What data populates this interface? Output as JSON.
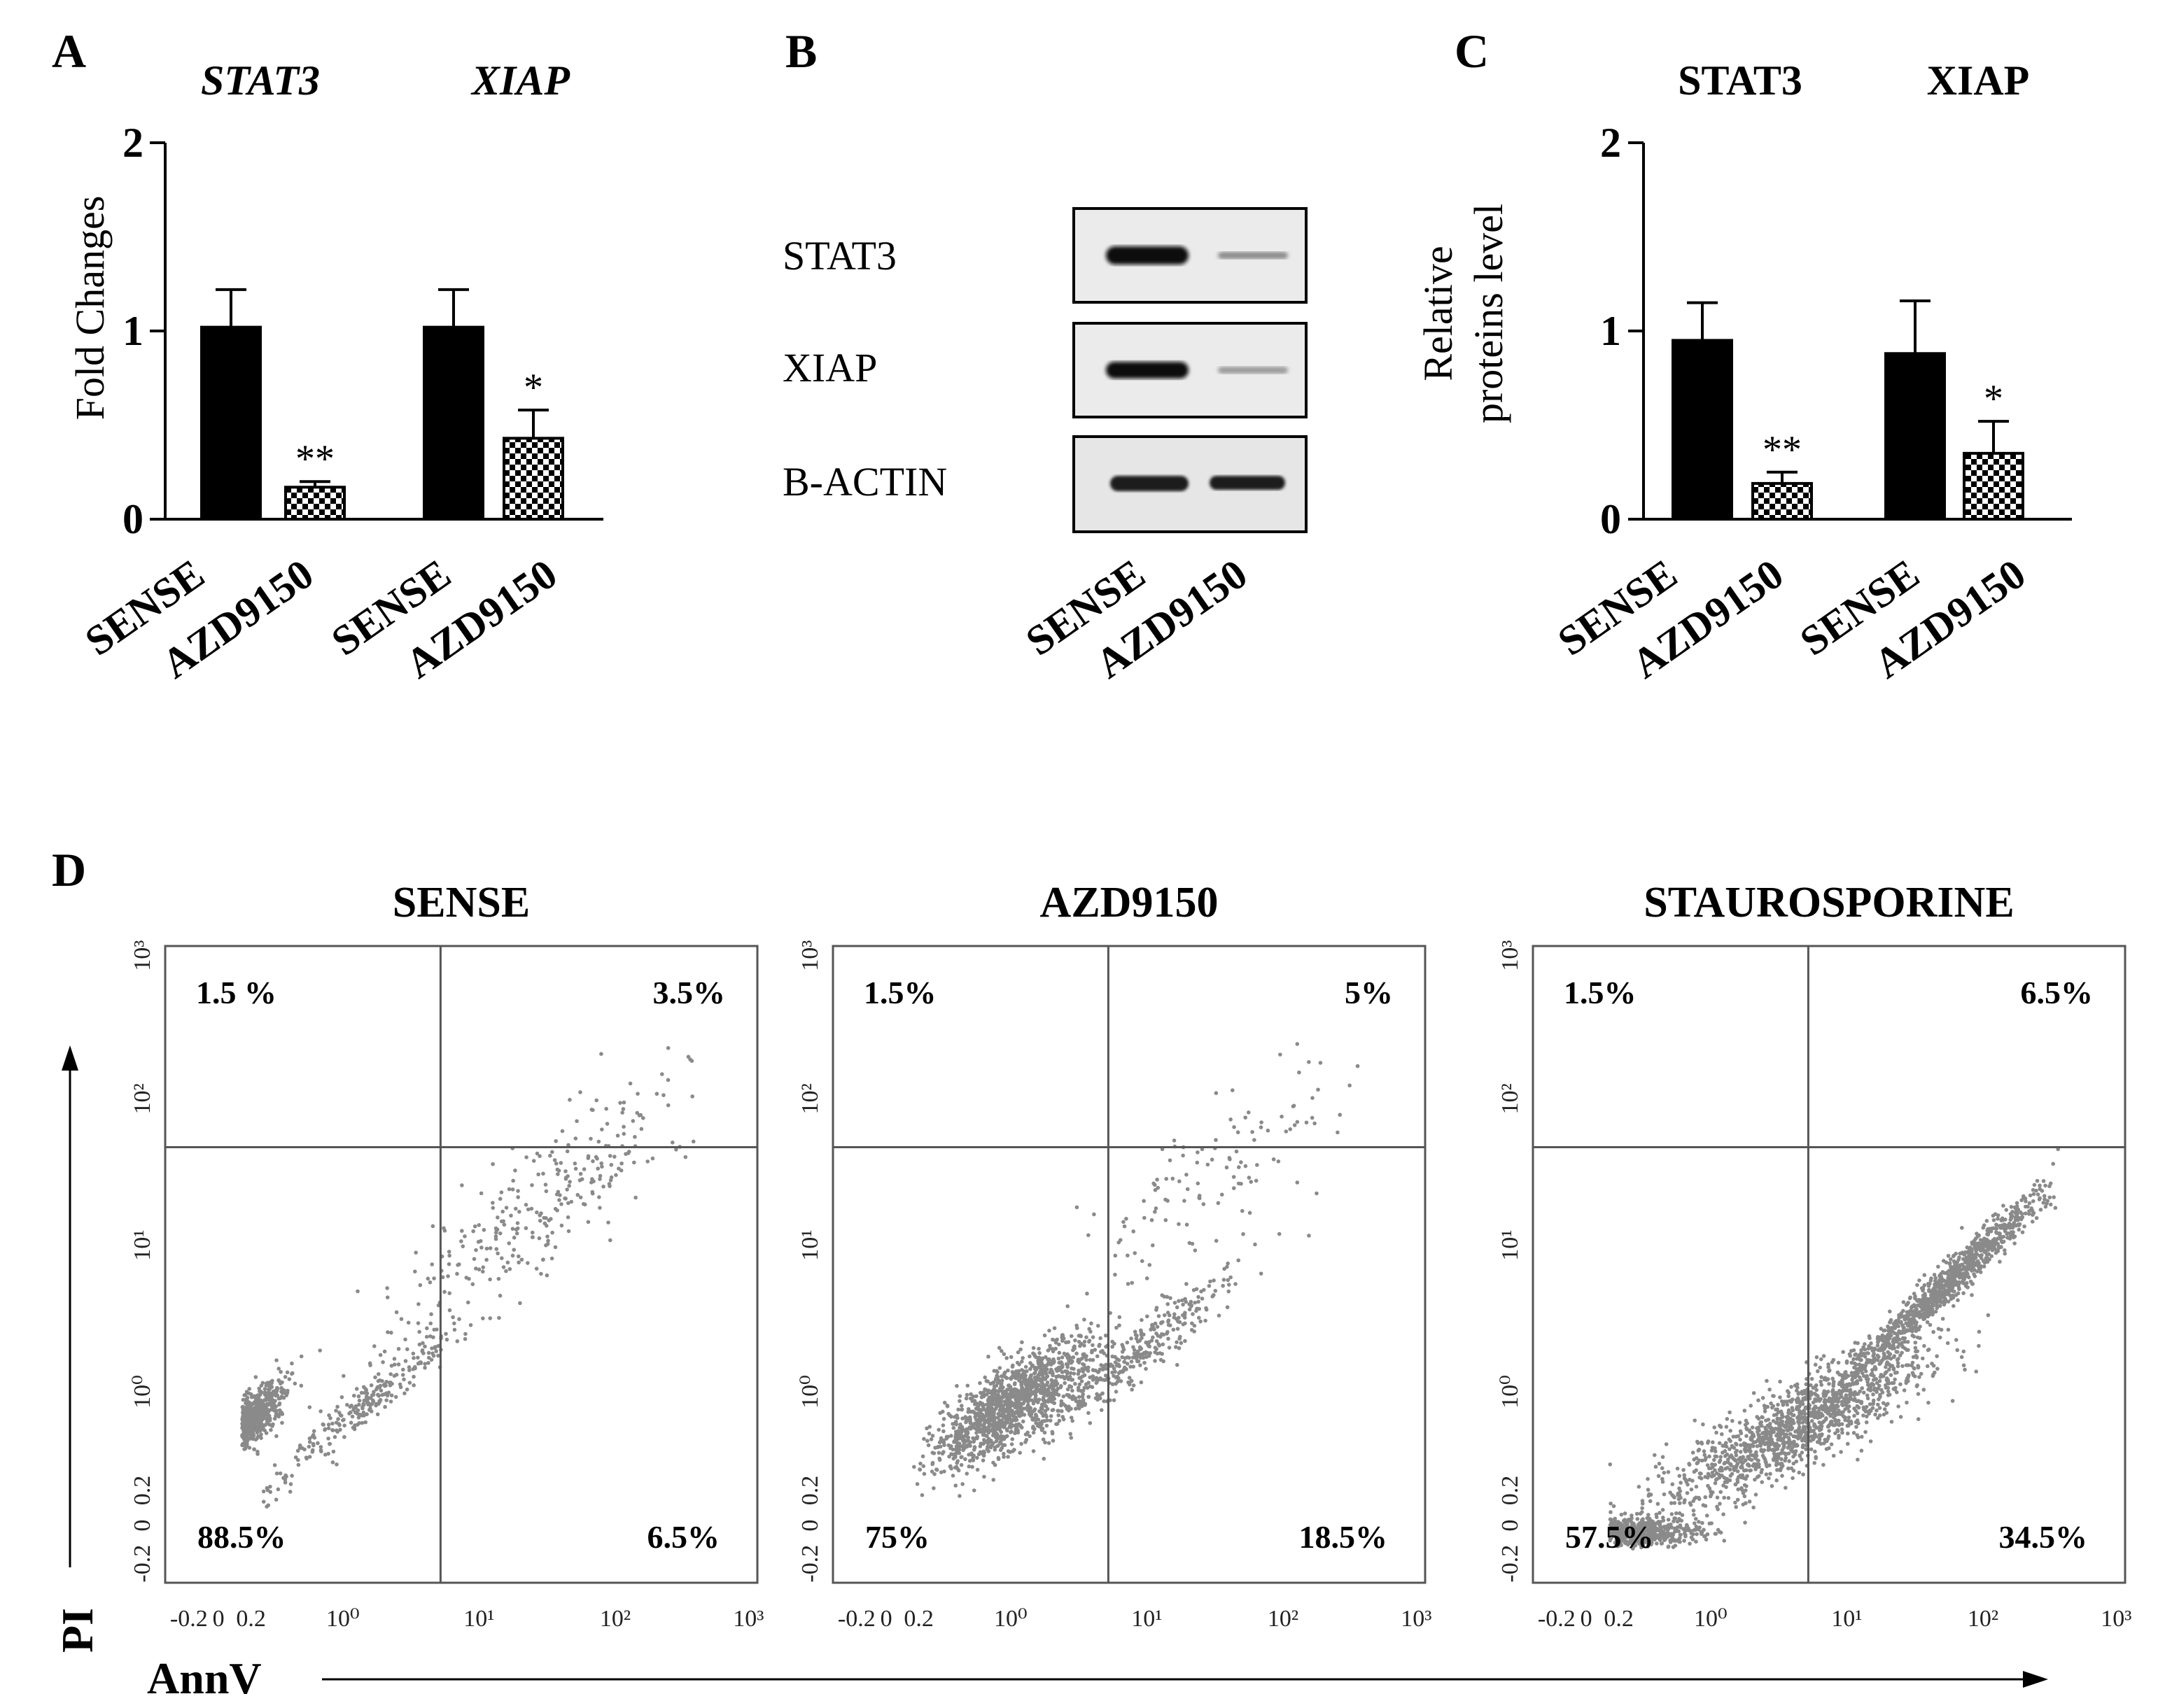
{
  "panels": {
    "A": {
      "letter": "A",
      "chart_data": {
        "type": "bar",
        "groups": [
          "STAT3",
          "XIAP"
        ],
        "categories": [
          "SENSE",
          "AZD9150",
          "SENSE",
          "AZD9150"
        ],
        "values": [
          1.02,
          0.17,
          1.02,
          0.43
        ],
        "errors": [
          0.2,
          0.03,
          0.2,
          0.15
        ],
        "significance": [
          "",
          "**",
          "",
          "*"
        ],
        "ylabel": "Fold Changes",
        "ylim": [
          0,
          2
        ],
        "yticks": [
          "0",
          "1",
          "2"
        ]
      }
    },
    "B": {
      "letter": "B",
      "bands": [
        "STAT3",
        "XIAP",
        "B-ACTIN"
      ],
      "lanes": [
        "SENSE",
        "AZD9150"
      ]
    },
    "C": {
      "letter": "C",
      "chart_data": {
        "type": "bar",
        "groups": [
          "STAT3",
          "XIAP"
        ],
        "categories": [
          "SENSE",
          "AZD9150",
          "SENSE",
          "AZD9150"
        ],
        "values": [
          0.95,
          0.19,
          0.88,
          0.35
        ],
        "errors": [
          0.2,
          0.06,
          0.28,
          0.17
        ],
        "significance": [
          "",
          "**",
          "",
          "*"
        ],
        "ylabel_lines": [
          "Relative",
          "proteins level"
        ],
        "ylim": [
          0,
          2
        ],
        "yticks": [
          "0",
          "1",
          "2"
        ]
      }
    },
    "D": {
      "letter": "D",
      "x_axis_label": "AnnV",
      "y_axis_label": "PI",
      "chart_data": [
        {
          "type": "scatter",
          "title": "SENSE",
          "quadrants": {
            "upper_left": "1.5 %",
            "upper_right": "3.5%",
            "lower_left": "88.5%",
            "lower_right": "6.5%"
          },
          "xticks": [
            "-0.2",
            "0",
            "0.2",
            "10⁰",
            "10¹",
            "10²",
            "10³"
          ],
          "yticks": [
            "-0.2",
            "0",
            "0.2",
            "10⁰",
            "10¹",
            "10²",
            "10³"
          ]
        },
        {
          "type": "scatter",
          "title": "AZD9150",
          "quadrants": {
            "upper_left": "1.5%",
            "upper_right": "5%",
            "lower_left": "75%",
            "lower_right": "18.5%"
          },
          "xticks": [
            "-0.2",
            "0",
            "0.2",
            "10⁰",
            "10¹",
            "10²",
            "10³"
          ],
          "yticks": [
            "-0.2",
            "0",
            "0.2",
            "10⁰",
            "10¹",
            "10²",
            "10³"
          ]
        },
        {
          "type": "scatter",
          "title": "STAUROSPORINE",
          "quadrants": {
            "upper_left": "1.5%",
            "upper_right": "6.5%",
            "lower_left": "57.5%",
            "lower_right": "34.5%"
          },
          "xticks": [
            "-0.2",
            "0",
            "0.2",
            "10⁰",
            "10¹",
            "10²",
            "10³"
          ],
          "yticks": [
            "-0.2",
            "0",
            "0.2",
            "10⁰",
            "10¹",
            "10²",
            "10³"
          ]
        }
      ]
    }
  }
}
